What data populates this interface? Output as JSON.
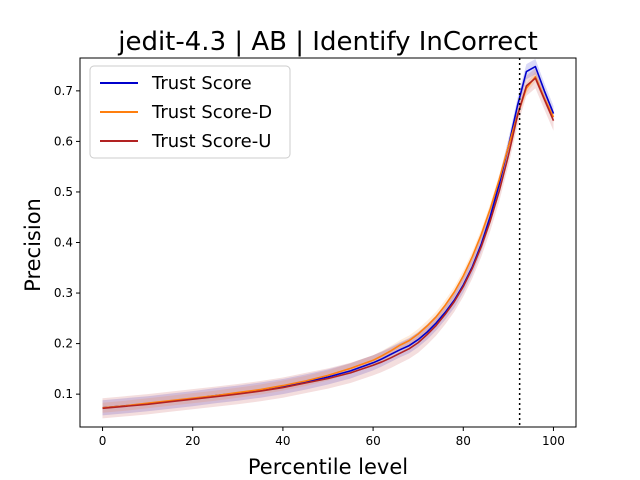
{
  "chart_data": {
    "type": "line",
    "title": "jedit-4.3 | AB | Identify InCorrect",
    "xlabel": "Percentile level",
    "ylabel": "Precision",
    "xlim": [
      -5,
      105
    ],
    "ylim": [
      0.035,
      0.765
    ],
    "xticks": [
      0,
      20,
      40,
      60,
      80,
      100
    ],
    "yticks": [
      0.1,
      0.2,
      0.3,
      0.4,
      0.5,
      0.6,
      0.7
    ],
    "xtick_labels": [
      "0",
      "20",
      "40",
      "60",
      "80",
      "100"
    ],
    "ytick_labels": [
      "0.1",
      "0.2",
      "0.3",
      "0.4",
      "0.5",
      "0.6",
      "0.7"
    ],
    "grid": false,
    "legend_position": "top-left",
    "reference_line": {
      "x": 92.5,
      "style": "dotted",
      "color": "#000000"
    },
    "x": [
      0,
      5,
      10,
      15,
      20,
      25,
      30,
      35,
      40,
      45,
      50,
      55,
      60,
      62,
      64,
      66,
      68,
      70,
      72,
      74,
      76,
      78,
      80,
      82,
      84,
      86,
      88,
      90,
      92,
      94,
      96,
      98,
      100
    ],
    "series": [
      {
        "name": "Trust Score",
        "color": "#0000cc",
        "values": [
          0.073,
          0.077,
          0.081,
          0.086,
          0.091,
          0.097,
          0.102,
          0.108,
          0.115,
          0.124,
          0.134,
          0.146,
          0.162,
          0.17,
          0.179,
          0.188,
          0.196,
          0.208,
          0.223,
          0.241,
          0.262,
          0.286,
          0.316,
          0.352,
          0.397,
          0.452,
          0.516,
          0.59,
          0.67,
          0.738,
          0.748,
          0.7,
          0.655
        ],
        "band": 0.015
      },
      {
        "name": "Trust Score-D",
        "color": "#ff7f0e",
        "values": [
          0.073,
          0.077,
          0.082,
          0.087,
          0.092,
          0.097,
          0.103,
          0.109,
          0.117,
          0.126,
          0.137,
          0.151,
          0.167,
          0.176,
          0.186,
          0.197,
          0.206,
          0.219,
          0.235,
          0.253,
          0.276,
          0.302,
          0.334,
          0.372,
          0.416,
          0.467,
          0.525,
          0.59,
          0.652,
          0.705,
          0.728,
          0.685,
          0.648
        ],
        "band": 0.01
      },
      {
        "name": "Trust Score-U",
        "color": "#b22222",
        "values": [
          0.072,
          0.076,
          0.08,
          0.085,
          0.09,
          0.095,
          0.1,
          0.106,
          0.113,
          0.122,
          0.131,
          0.142,
          0.157,
          0.164,
          0.172,
          0.181,
          0.19,
          0.202,
          0.218,
          0.236,
          0.258,
          0.283,
          0.313,
          0.349,
          0.392,
          0.443,
          0.502,
          0.572,
          0.65,
          0.71,
          0.725,
          0.683,
          0.641
        ],
        "band": 0.02
      }
    ]
  }
}
